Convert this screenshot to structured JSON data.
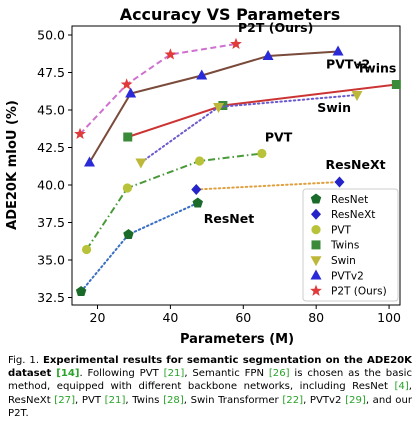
{
  "chart_data": {
    "type": "line",
    "title": "Accuracy VS Parameters",
    "xlabel": "Parameters (M)",
    "ylabel": "ADE20K mIoU (%)",
    "xlim": [
      13,
      103
    ],
    "ylim": [
      32,
      50.6
    ],
    "xticks": [
      20,
      40,
      60,
      80,
      100
    ],
    "yticks": [
      32.5,
      35.0,
      37.5,
      40.0,
      42.5,
      45.0,
      47.5,
      50.0
    ],
    "legend_position": "lower-right",
    "series": [
      {
        "name": "ResNet",
        "color": "#1a6b2a",
        "marker": "pentagon",
        "line": "dotted",
        "line_color": "#3a6fc4",
        "x": [
          15.5,
          28.5,
          47.5
        ],
        "y": [
          32.9,
          36.7,
          38.8
        ],
        "label": "ResNet"
      },
      {
        "name": "ResNeXt",
        "color": "#2424c8",
        "marker": "diamond",
        "line": "dotted",
        "line_color": "#e0a040",
        "x": [
          47.1,
          86.4
        ],
        "y": [
          39.7,
          40.2
        ],
        "label": "ResNeXt"
      },
      {
        "name": "PVT",
        "color": "#b9c33a",
        "marker": "circle",
        "line": "dashdot",
        "line_color": "#4a9a3a",
        "x": [
          17.0,
          28.2,
          48.0,
          65.1
        ],
        "y": [
          35.7,
          39.8,
          41.6,
          42.1
        ],
        "label": "PVT"
      },
      {
        "name": "Twins",
        "color": "#3a8a3a",
        "marker": "square",
        "line": "solid",
        "line_color": "#cc3333",
        "x": [
          28.3,
          54.4,
          102.0
        ],
        "y": [
          43.2,
          45.3,
          46.7
        ],
        "label": "Twins"
      },
      {
        "name": "Swin",
        "color": "#bdb83a",
        "marker": "triangle-down",
        "line": "dotted",
        "line_color": "#6a5acd",
        "x": [
          31.9,
          53.2,
          91.2
        ],
        "y": [
          41.5,
          45.2,
          46.0
        ],
        "label": "Swin"
      },
      {
        "name": "PVTv2",
        "color": "#2a2ad8",
        "marker": "triangle-up",
        "line": "solid",
        "line_color": "#7a4a3a",
        "x": [
          17.8,
          29.1,
          48.6,
          66.8,
          86.0
        ],
        "y": [
          41.5,
          46.1,
          47.3,
          48.6,
          48.9
        ],
        "label": "PVTv2"
      },
      {
        "name": "P2T (Ours)",
        "color": "#e03a3a",
        "marker": "star",
        "line": "dashed",
        "line_color": "#d070d0",
        "x": [
          15.2,
          28.0,
          40.0,
          58.0
        ],
        "y": [
          43.4,
          46.7,
          48.7,
          49.4
        ],
        "label": "P2T (Ours)"
      }
    ]
  },
  "caption": {
    "fig": "Fig. 1.",
    "bold": "Experimental results for semantic segmentation on the ADE20K dataset",
    "cite1": "[14]",
    "t1": ". Following PVT ",
    "cite2": "[21]",
    "t2": ", Semantic FPN ",
    "cite3": "[26]",
    "t3": " is chosen as the basic method, equipped with different backbone networks, including ResNet ",
    "cite4": "[4]",
    "t4": ", ResNeXt ",
    "cite5": "[27]",
    "t5": ", PVT ",
    "cite6": "[21]",
    "t6": ", Twins ",
    "cite7": "[28]",
    "t7": ", Swin Transformer ",
    "cite8": "[22]",
    "t8": ", PVTv2 ",
    "cite9": "[29]",
    "t9": ", and our P2T."
  }
}
